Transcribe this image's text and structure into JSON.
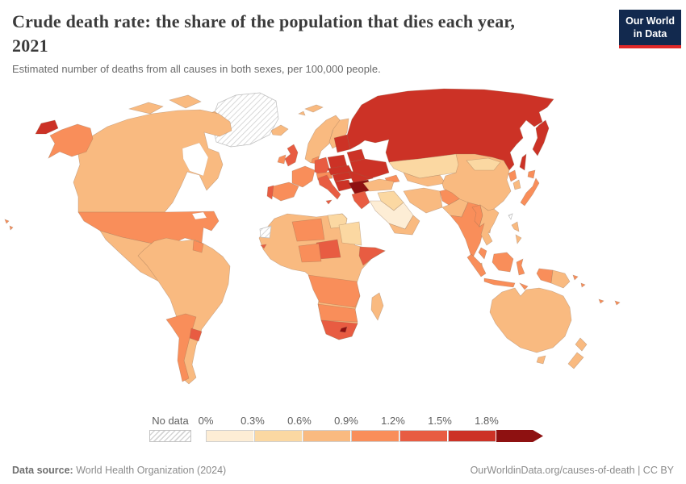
{
  "header": {
    "title_line1": "Crude death rate: the share of the population that dies each year,",
    "title_line2": "2021",
    "subtitle": "Estimated number of deaths from all causes in both sexes, per 100,000 people.",
    "logo_line1": "Our World",
    "logo_line2": "in Data",
    "logo_bg": "#12294e",
    "logo_accent": "#e02828"
  },
  "chart_data": {
    "type": "choropleth_map",
    "title": "Crude death rate: the share of the population that dies each year, 2021",
    "year": "2021",
    "unit": "share of population that dies (%)",
    "legend": {
      "no_data_label": "No data",
      "no_data_pattern": "diagonal-hatch",
      "tick_labels": [
        "0%",
        "0.3%",
        "0.6%",
        "0.9%",
        "1.2%",
        "1.5%",
        "1.8%"
      ],
      "bins": [
        {
          "label": "0–0.3%",
          "color": "#fdedd5"
        },
        {
          "label": "0.3–0.6%",
          "color": "#fbd8a2"
        },
        {
          "label": "0.6–0.9%",
          "color": "#f9ba80"
        },
        {
          "label": "0.9–1.2%",
          "color": "#f98e5a"
        },
        {
          "label": "1.2–1.5%",
          "color": "#e85c42"
        },
        {
          "label": "1.5–1.8%",
          "color": "#cc3226"
        },
        {
          "label": "≥1.8%",
          "color": "#8e1111"
        }
      ],
      "arrow_end": true
    },
    "regions": {
      "greenland": 0,
      "western-sahara": 0,
      "taiwan": 0,
      "saudi-arabia": 1,
      "kazakhstan": 2,
      "mongolia": 2,
      "sudan": 2,
      "egypt": 2,
      "syria-iraq": 2,
      "canada": 3,
      "arctic-islands": 3,
      "mexico": 3,
      "central-america": 3,
      "jamaica": 3,
      "puerto-rico": 3,
      "south-america": 3,
      "iceland": 3,
      "svalbard": 3,
      "ireland": 4,
      "norway-sweden": 3,
      "finland": 3,
      "turkey": 3,
      "iran": 3,
      "pakistan": 3,
      "uzbekistan-turkmenistan": 3,
      "yemen-oman": 3,
      "africa": 3,
      "madagascar": 3,
      "china": 3,
      "south-korea": 3,
      "sri-lanka": 3,
      "bangladesh": 3,
      "thailand-indochina": 3,
      "philippines": 3,
      "png": 3,
      "australia": 3,
      "tasmania": 3,
      "new-zealand": 3,
      "usa": 4,
      "alaska": 4,
      "hawaii": 4,
      "hispaniola": 4,
      "venezuela-guyana": 4,
      "argentina": 4,
      "uk": 5,
      "france": 4,
      "spain": 4,
      "denmark": 4,
      "alpine-states": 4,
      "caucasus": 4,
      "afghanistan": 4,
      "india": 4,
      "north-korea": 4,
      "japan": 4,
      "myanmar": 4,
      "malaysia": 4,
      "indonesia": 4,
      "west-new-guinea": 4,
      "solomon-islands": 4,
      "fiji-new-caledonia": 4,
      "niger": 4,
      "nigeria": 4,
      "angola-zambia-mozambique": 4,
      "namibia-botswana-zimbabwe": 4,
      "germany": 5,
      "italy": 5,
      "sicily": 5,
      "portugal": 5,
      "greece": 5,
      "central-african-republic": 5,
      "somalia": 5,
      "south-africa": 5,
      "uruguay": 5,
      "guinea-bissau": 5,
      "russia": 6,
      "kamchatka": 6,
      "sakhalin": 6,
      "chukotka": 6,
      "ukraine": 6,
      "belarus": 6,
      "baltics": 6,
      "poland": 6,
      "czech-slovakia": 6,
      "hungary": 6,
      "romania": 6,
      "balkans-west": 6,
      "serbia-bulgaria": 7,
      "cuba": 7,
      "lesotho": 7
    }
  },
  "footer": {
    "datasource_label": "Data source:",
    "datasource_value": " World Health Organization (2024)",
    "rights": "OurWorldinData.org/causes-of-death | CC BY"
  }
}
